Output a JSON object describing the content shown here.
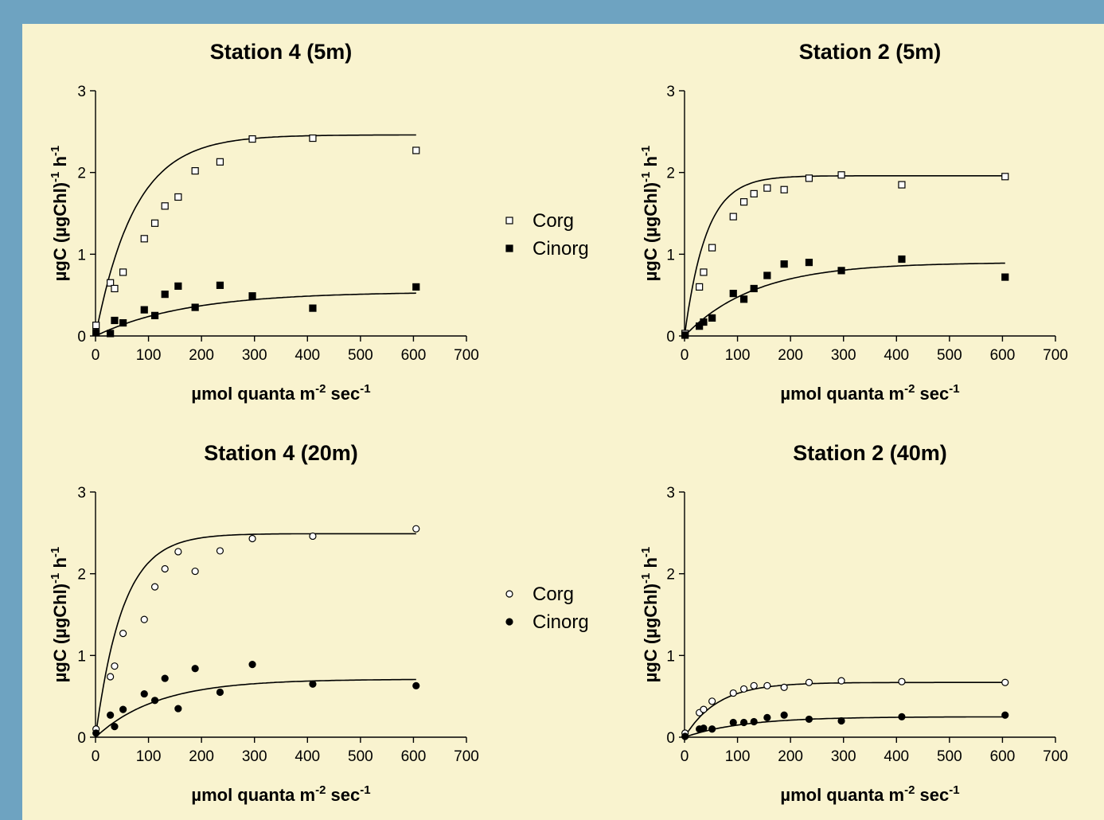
{
  "page": {
    "background": "#6ea3c1",
    "panel_color": "#f9f3cf"
  },
  "chart_data": [
    {
      "type": "scatter",
      "title": "Station 4 (5m)",
      "xlabel": {
        "main": "µmol quanta m",
        "sup1": "-2",
        "mid": " sec",
        "sup2": "-1"
      },
      "ylabel": {
        "main": "µgC (µgChl)",
        "sup1": "-1",
        "mid": " h",
        "sup2": "-1"
      },
      "xlim": [
        0,
        700
      ],
      "ylim": [
        0,
        3
      ],
      "xticks": [
        "0",
        "100",
        "200",
        "300",
        "400",
        "500",
        "600",
        "700"
      ],
      "yticks": [
        "0",
        "1",
        "2",
        "3"
      ],
      "marker": "square",
      "series": [
        {
          "name": "Corg",
          "fill": "open",
          "points": [
            [
              1,
              0.13
            ],
            [
              28,
              0.65
            ],
            [
              36,
              0.58
            ],
            [
              52,
              0.78
            ],
            [
              92,
              1.19
            ],
            [
              112,
              1.38
            ],
            [
              131,
              1.59
            ],
            [
              156,
              1.7
            ],
            [
              188,
              2.02
            ],
            [
              235,
              2.13
            ],
            [
              296,
              2.41
            ],
            [
              410,
              2.42
            ],
            [
              605,
              2.27
            ]
          ],
          "fit": {
            "pmax": 2.46,
            "alpha": 0.0135,
            "x0": 0,
            "x1": 605
          }
        },
        {
          "name": "Cinorg",
          "fill": "filled",
          "points": [
            [
              1,
              0.04
            ],
            [
              28,
              0.03
            ],
            [
              36,
              0.19
            ],
            [
              52,
              0.16
            ],
            [
              92,
              0.32
            ],
            [
              112,
              0.25
            ],
            [
              131,
              0.51
            ],
            [
              156,
              0.61
            ],
            [
              188,
              0.35
            ],
            [
              235,
              0.62
            ],
            [
              296,
              0.49
            ],
            [
              410,
              0.34
            ],
            [
              605,
              0.6
            ]
          ],
          "fit": {
            "pmax": 0.54,
            "alpha": 0.0058,
            "x0": 0,
            "x1": 605
          }
        }
      ]
    },
    {
      "type": "scatter",
      "title": "Station 2 (5m)",
      "xlabel": {
        "main": "µmol quanta m",
        "sup1": "-2",
        "mid": " sec",
        "sup2": "-1"
      },
      "ylabel": {
        "main": "µgC (µgChl)",
        "sup1": "-1",
        "mid": " h",
        "sup2": "-1"
      },
      "xlim": [
        0,
        700
      ],
      "ylim": [
        0,
        3
      ],
      "xticks": [
        "0",
        "100",
        "200",
        "300",
        "400",
        "500",
        "600",
        "700"
      ],
      "yticks": [
        "0",
        "1",
        "2",
        "3"
      ],
      "marker": "square",
      "series": [
        {
          "name": "Corg",
          "fill": "open",
          "points": [
            [
              1,
              0.03
            ],
            [
              28,
              0.6
            ],
            [
              36,
              0.78
            ],
            [
              52,
              1.08
            ],
            [
              92,
              1.46
            ],
            [
              112,
              1.64
            ],
            [
              131,
              1.74
            ],
            [
              156,
              1.81
            ],
            [
              188,
              1.79
            ],
            [
              235,
              1.93
            ],
            [
              296,
              1.97
            ],
            [
              410,
              1.85
            ],
            [
              605,
              1.95
            ]
          ],
          "fit": {
            "pmax": 1.96,
            "alpha": 0.0245,
            "x0": 0,
            "x1": 605
          }
        },
        {
          "name": "Cinorg",
          "fill": "filled",
          "points": [
            [
              1,
              0.01
            ],
            [
              28,
              0.12
            ],
            [
              36,
              0.17
            ],
            [
              52,
              0.22
            ],
            [
              92,
              0.52
            ],
            [
              112,
              0.45
            ],
            [
              131,
              0.58
            ],
            [
              156,
              0.74
            ],
            [
              188,
              0.88
            ],
            [
              235,
              0.9
            ],
            [
              296,
              0.8
            ],
            [
              410,
              0.94
            ],
            [
              605,
              0.72
            ]
          ],
          "fit": {
            "pmax": 0.9,
            "alpha": 0.0075,
            "x0": 0,
            "x1": 605
          }
        }
      ]
    },
    {
      "type": "scatter",
      "title": "Station 4 (20m)",
      "xlabel": {
        "main": "µmol quanta m",
        "sup1": "-2",
        "mid": " sec",
        "sup2": "-1"
      },
      "ylabel": {
        "main": "µgC (µgChl)",
        "sup1": "-1",
        "mid": " h",
        "sup2": "-1"
      },
      "xlim": [
        0,
        700
      ],
      "ylim": [
        0,
        3
      ],
      "xticks": [
        "0",
        "100",
        "200",
        "300",
        "400",
        "500",
        "600",
        "700"
      ],
      "yticks": [
        "0",
        "1",
        "2",
        "3"
      ],
      "marker": "circle",
      "series": [
        {
          "name": "Corg",
          "fill": "open",
          "points": [
            [
              1,
              0.1
            ],
            [
              28,
              0.74
            ],
            [
              36,
              0.87
            ],
            [
              52,
              1.27
            ],
            [
              92,
              1.44
            ],
            [
              112,
              1.84
            ],
            [
              131,
              2.06
            ],
            [
              156,
              2.27
            ],
            [
              188,
              2.03
            ],
            [
              235,
              2.28
            ],
            [
              296,
              2.43
            ],
            [
              410,
              2.46
            ],
            [
              605,
              2.55
            ]
          ],
          "fit": {
            "pmax": 2.49,
            "alpha": 0.0195,
            "x0": 0,
            "x1": 605
          }
        },
        {
          "name": "Cinorg",
          "fill": "filled",
          "points": [
            [
              1,
              0.05
            ],
            [
              28,
              0.27
            ],
            [
              36,
              0.13
            ],
            [
              52,
              0.34
            ],
            [
              92,
              0.53
            ],
            [
              112,
              0.45
            ],
            [
              131,
              0.72
            ],
            [
              156,
              0.35
            ],
            [
              188,
              0.84
            ],
            [
              235,
              0.55
            ],
            [
              296,
              0.89
            ],
            [
              410,
              0.65
            ],
            [
              605,
              0.63
            ]
          ],
          "fit": {
            "pmax": 0.71,
            "alpha": 0.0085,
            "x0": 0,
            "x1": 605
          }
        }
      ]
    },
    {
      "type": "scatter",
      "title": "Station 2 (40m)",
      "xlabel": {
        "main": "µmol quanta m",
        "sup1": "-2",
        "mid": " sec",
        "sup2": "-1"
      },
      "ylabel": {
        "main": "µgC (µgChl)",
        "sup1": "-1",
        "mid": " h",
        "sup2": "-1"
      },
      "xlim": [
        0,
        700
      ],
      "ylim": [
        0,
        3
      ],
      "xticks": [
        "0",
        "100",
        "200",
        "300",
        "400",
        "500",
        "600",
        "700"
      ],
      "yticks": [
        "0",
        "1",
        "2",
        "3"
      ],
      "marker": "circle",
      "series": [
        {
          "name": "Corg",
          "fill": "open",
          "points": [
            [
              1,
              0.05
            ],
            [
              28,
              0.3
            ],
            [
              36,
              0.34
            ],
            [
              52,
              0.44
            ],
            [
              92,
              0.54
            ],
            [
              112,
              0.59
            ],
            [
              131,
              0.63
            ],
            [
              156,
              0.63
            ],
            [
              188,
              0.61
            ],
            [
              235,
              0.67
            ],
            [
              296,
              0.69
            ],
            [
              410,
              0.68
            ],
            [
              605,
              0.67
            ]
          ],
          "fit": {
            "pmax": 0.67,
            "alpha": 0.016,
            "x0": 0,
            "x1": 605
          }
        },
        {
          "name": "Cinorg",
          "fill": "filled",
          "points": [
            [
              1,
              0.01
            ],
            [
              28,
              0.1
            ],
            [
              36,
              0.11
            ],
            [
              52,
              0.1
            ],
            [
              92,
              0.18
            ],
            [
              112,
              0.18
            ],
            [
              131,
              0.19
            ],
            [
              156,
              0.24
            ],
            [
              188,
              0.27
            ],
            [
              235,
              0.22
            ],
            [
              296,
              0.2
            ],
            [
              410,
              0.25
            ],
            [
              605,
              0.27
            ]
          ],
          "fit": {
            "pmax": 0.25,
            "alpha": 0.009,
            "x0": 0,
            "x1": 605
          }
        }
      ]
    }
  ],
  "legends": [
    {
      "marker": "square",
      "items": [
        {
          "label": "Corg",
          "fill": "open"
        },
        {
          "label": "Cinorg",
          "fill": "filled"
        }
      ]
    },
    {
      "marker": "circle",
      "items": [
        {
          "label": "Corg",
          "fill": "open"
        },
        {
          "label": "Cinorg",
          "fill": "filled"
        }
      ]
    }
  ]
}
